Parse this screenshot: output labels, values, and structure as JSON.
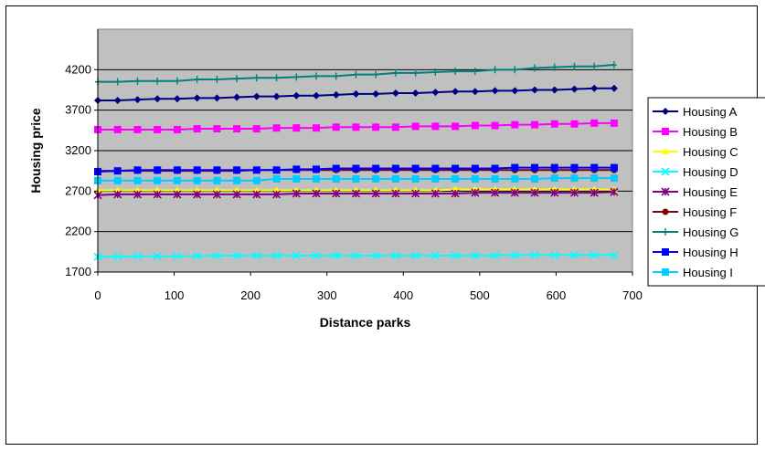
{
  "chart_data": {
    "type": "line",
    "title": "",
    "xlabel": "Distance parks",
    "ylabel": "Housing price",
    "xlim": [
      0,
      700
    ],
    "ylim": [
      1700,
      4700
    ],
    "xticks": [
      0,
      100,
      200,
      300,
      400,
      500,
      600,
      700
    ],
    "yticks": [
      1700,
      2200,
      2700,
      3200,
      3700,
      4200
    ],
    "grid": "horizontal major gridlines",
    "legend_position": "right",
    "plot_background": "#c0c0c0",
    "x": [
      0,
      26,
      52,
      78,
      104,
      130,
      156,
      182,
      208,
      234,
      260,
      286,
      312,
      338,
      364,
      390,
      416,
      442,
      468,
      494,
      520,
      546,
      572,
      598,
      624,
      650,
      676
    ],
    "series": [
      {
        "name": "Housing A",
        "color": "#000080",
        "marker": "diamond",
        "values": [
          3820,
          3820,
          3830,
          3840,
          3840,
          3850,
          3850,
          3860,
          3870,
          3870,
          3880,
          3880,
          3890,
          3900,
          3900,
          3910,
          3910,
          3920,
          3930,
          3930,
          3940,
          3940,
          3950,
          3950,
          3960,
          3970,
          3970
        ]
      },
      {
        "name": "Housing B",
        "color": "#ff00ff",
        "marker": "square",
        "values": [
          3460,
          3460,
          3460,
          3460,
          3460,
          3470,
          3470,
          3470,
          3470,
          3480,
          3480,
          3480,
          3490,
          3490,
          3490,
          3490,
          3500,
          3500,
          3500,
          3510,
          3510,
          3520,
          3520,
          3530,
          3530,
          3540,
          3540
        ]
      },
      {
        "name": "Housing C",
        "color": "#ffff00",
        "marker": "triangle",
        "values": [
          2710,
          2710,
          2710,
          2710,
          2710,
          2710,
          2710,
          2710,
          2710,
          2710,
          2710,
          2710,
          2710,
          2710,
          2710,
          2710,
          2710,
          2710,
          2720,
          2720,
          2720,
          2720,
          2720,
          2720,
          2720,
          2720,
          2720
        ]
      },
      {
        "name": "Housing D",
        "color": "#00ffff",
        "marker": "x",
        "values": [
          1890,
          1890,
          1895,
          1895,
          1895,
          1900,
          1900,
          1905,
          1905,
          1905,
          1905,
          1905,
          1905,
          1905,
          1905,
          1905,
          1905,
          1905,
          1905,
          1905,
          1905,
          1910,
          1910,
          1910,
          1910,
          1910,
          1910
        ]
      },
      {
        "name": "Housing E",
        "color": "#800080",
        "marker": "star",
        "values": [
          2650,
          2660,
          2660,
          2660,
          2660,
          2660,
          2660,
          2660,
          2660,
          2660,
          2670,
          2670,
          2670,
          2670,
          2670,
          2670,
          2670,
          2670,
          2670,
          2680,
          2680,
          2680,
          2680,
          2680,
          2680,
          2680,
          2690
        ]
      },
      {
        "name": "Housing F",
        "color": "#800000",
        "marker": "circle",
        "values": [
          2950,
          2950,
          2950,
          2950,
          2950,
          2950,
          2950,
          2950,
          2960,
          2960,
          2960,
          2960,
          2960,
          2960,
          2960,
          2960,
          2960,
          2960,
          2960,
          2960,
          2960,
          2960,
          2960,
          2960,
          2960,
          2960,
          2960
        ]
      },
      {
        "name": "Housing G",
        "color": "#008080",
        "marker": "plus",
        "values": [
          4050,
          4050,
          4060,
          4060,
          4060,
          4080,
          4080,
          4090,
          4100,
          4100,
          4110,
          4120,
          4120,
          4140,
          4140,
          4160,
          4160,
          4170,
          4180,
          4180,
          4200,
          4200,
          4220,
          4230,
          4240,
          4240,
          4260
        ]
      },
      {
        "name": "Housing H",
        "color": "#0000ff",
        "marker": "square",
        "values": [
          2940,
          2950,
          2960,
          2960,
          2960,
          2960,
          2960,
          2960,
          2960,
          2960,
          2970,
          2970,
          2980,
          2980,
          2980,
          2980,
          2980,
          2980,
          2980,
          2980,
          2980,
          2990,
          2990,
          2990,
          2990,
          2990,
          2990
        ]
      },
      {
        "name": "Housing I",
        "color": "#00ccff",
        "marker": "square",
        "values": [
          2830,
          2830,
          2830,
          2830,
          2830,
          2830,
          2830,
          2830,
          2830,
          2850,
          2850,
          2850,
          2850,
          2850,
          2850,
          2850,
          2850,
          2850,
          2850,
          2850,
          2850,
          2850,
          2850,
          2860,
          2860,
          2860,
          2860
        ]
      }
    ]
  }
}
